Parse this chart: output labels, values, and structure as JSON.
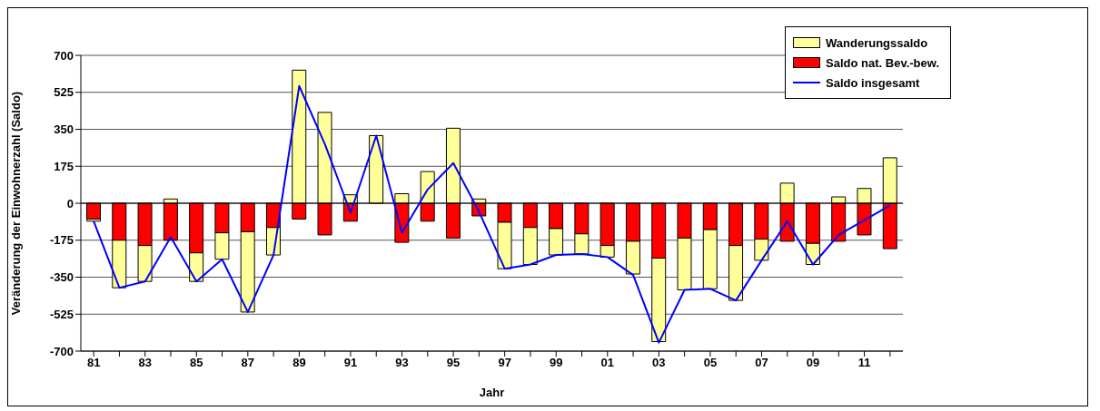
{
  "chart_data": {
    "type": "bar",
    "stacked": true,
    "xlabel": "Jahr",
    "ylabel": "Veränderung der Einwohnerzahl (Saldo)",
    "categories": [
      "81",
      null,
      "83",
      null,
      "85",
      null,
      "87",
      null,
      "89",
      null,
      "91",
      null,
      "93",
      null,
      "95",
      null,
      "97",
      null,
      "99",
      null,
      "01",
      null,
      "03",
      null,
      "05",
      null,
      "07",
      null,
      "09",
      null,
      "11",
      null
    ],
    "series": [
      {
        "name": "Saldo nat. Bev.-bew.",
        "color": "#ff0000",
        "values": [
          -75,
          -175,
          -200,
          -175,
          -235,
          -140,
          -135,
          -115,
          -75,
          -150,
          -85,
          0,
          -185,
          -85,
          -165,
          -60,
          -90,
          -115,
          -120,
          -145,
          -200,
          -180,
          -260,
          -165,
          -125,
          -200,
          -170,
          -180,
          -190,
          -180,
          -150,
          -215
        ]
      },
      {
        "name": "Wanderungssaldo",
        "color": "#ffff99",
        "values": [
          -10,
          -225,
          -170,
          20,
          -135,
          -125,
          -380,
          -130,
          630,
          430,
          40,
          320,
          45,
          150,
          355,
          20,
          -220,
          -175,
          -125,
          -95,
          -55,
          -155,
          -395,
          -245,
          -280,
          -260,
          -100,
          95,
          -100,
          30,
          70,
          215
        ]
      },
      {
        "name": "Saldo insgesamt",
        "type": "line",
        "color": "#0000ff",
        "values": [
          -85,
          -400,
          -370,
          -160,
          -370,
          -265,
          -515,
          -245,
          555,
          280,
          -45,
          320,
          -140,
          65,
          190,
          -40,
          -310,
          -290,
          -245,
          -240,
          -255,
          -340,
          -660,
          -410,
          -405,
          -460,
          -270,
          -85,
          -290,
          -150,
          -80,
          -10
        ]
      }
    ],
    "ylim": [
      -700,
      700
    ],
    "yticks": [
      -700,
      -525,
      -350,
      -175,
      0,
      175,
      350,
      525,
      700
    ],
    "grid": "y",
    "legend": "top right",
    "marker": "none",
    "line_style": "solid"
  }
}
